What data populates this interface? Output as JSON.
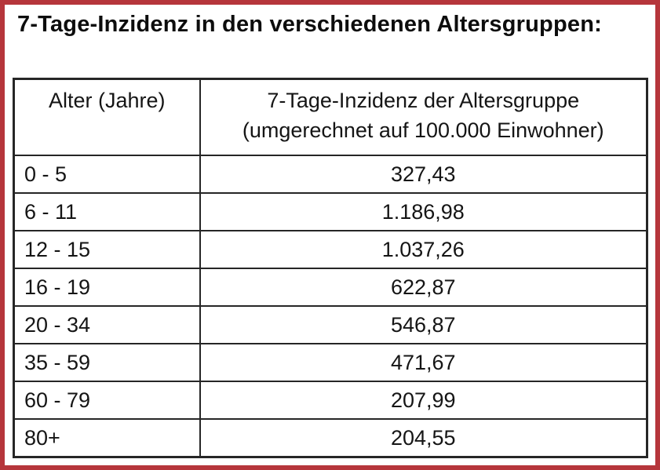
{
  "page": {
    "title": "7-Tage-Inzidenz in den verschiedenen Altersgruppen:",
    "accent_border_color": "#b6363b",
    "background_color": "#ffffff",
    "table_line_color": "#262626"
  },
  "table": {
    "header": {
      "age": "Alter (Jahre)",
      "incidence_line1": "7-Tage-Inzidenz der Altersgruppe",
      "incidence_line2": "(umgerechnet auf 100.000 Einwohner)"
    },
    "rows": [
      {
        "age": "0 - 5",
        "incidence": "327,43"
      },
      {
        "age": "6 - 11",
        "incidence": "1.186,98"
      },
      {
        "age": "12 - 15",
        "incidence": "1.037,26"
      },
      {
        "age": "16 - 19",
        "incidence": "622,87"
      },
      {
        "age": "20 - 34",
        "incidence": "546,87"
      },
      {
        "age": "35 - 59",
        "incidence": "471,67"
      },
      {
        "age": "60 - 79",
        "incidence": "207,99"
      },
      {
        "age": "80+",
        "incidence": "204,55"
      }
    ]
  },
  "chart_data": {
    "type": "table",
    "title": "7-Tage-Inzidenz in den verschiedenen Altersgruppen",
    "columns": [
      "Alter (Jahre)",
      "7-Tage-Inzidenz der Altersgruppe (umgerechnet auf 100.000 Einwohner)"
    ],
    "categories": [
      "0 - 5",
      "6 - 11",
      "12 - 15",
      "16 - 19",
      "20 - 34",
      "35 - 59",
      "60 - 79",
      "80+"
    ],
    "values": [
      327.43,
      1186.98,
      1037.26,
      622.87,
      546.87,
      471.67,
      207.99,
      204.55
    ]
  }
}
